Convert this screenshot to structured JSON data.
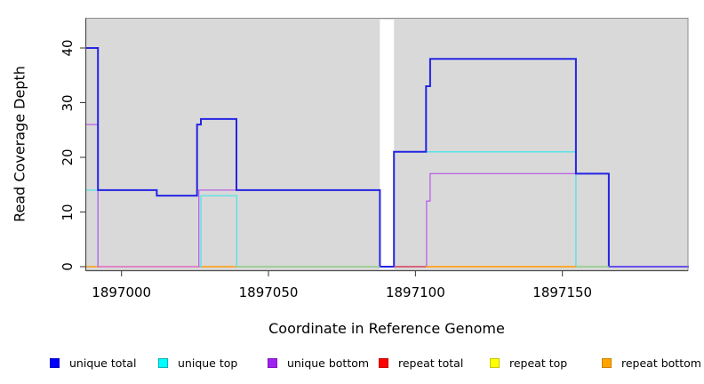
{
  "chart_data": {
    "type": "line",
    "step": true,
    "title": "",
    "xlabel": "Coordinate in Reference Genome",
    "ylabel": "Read Coverage Depth",
    "xlim": [
      1896988,
      1897193
    ],
    "ylim": [
      0,
      45
    ],
    "grid": false,
    "plot_bg": "#d9d9d9",
    "x_ticks": [
      {
        "value": 1897000,
        "label": "1897000"
      },
      {
        "value": 1897050,
        "label": "1897050"
      },
      {
        "value": 1897100,
        "label": "1897100"
      },
      {
        "value": 1897150,
        "label": "1897150"
      }
    ],
    "y_ticks": [
      {
        "value": 0,
        "label": "0"
      },
      {
        "value": 10,
        "label": "10"
      },
      {
        "value": 20,
        "label": "20"
      },
      {
        "value": 30,
        "label": "30"
      },
      {
        "value": 40,
        "label": "40"
      }
    ],
    "gap_region": {
      "from": 1897087.9,
      "to": 1897092.7,
      "color": "#ffffff"
    },
    "series": [
      {
        "name": "repeat total",
        "color": "#FF0000",
        "draw_color": "#e03535",
        "width": 1.2,
        "points": [
          [
            1896988,
            0
          ],
          [
            1897193,
            0
          ]
        ]
      },
      {
        "name": "repeat top",
        "color": "#FFFF00",
        "draw_color": "#e8e84a",
        "width": 1.2,
        "points": [
          [
            1896988,
            0
          ],
          [
            1897193,
            0
          ]
        ]
      },
      {
        "name": "repeat bottom",
        "color": "#FFA500",
        "draw_color": "#ffa520",
        "width": 1.4,
        "points": [
          [
            1896988,
            0
          ],
          [
            1897193,
            0
          ]
        ]
      },
      {
        "name": "unique top",
        "color": "#00FFFF",
        "draw_color": "#4de3e8",
        "width": 1.3,
        "points": [
          [
            1896988,
            14
          ],
          [
            1896992,
            0
          ],
          [
            1897027,
            13
          ],
          [
            1897039.2,
            0
          ],
          [
            1897092.7,
            21
          ],
          [
            1897154.6,
            0
          ],
          [
            1897193,
            0
          ]
        ]
      },
      {
        "name": "unique bottom",
        "color": "#A020F0",
        "draw_color": "#b95fe8",
        "width": 1.3,
        "points": [
          [
            1896988,
            26
          ],
          [
            1896992,
            0
          ],
          [
            1897026.3,
            14
          ],
          [
            1897087.9,
            0
          ],
          [
            1897103.8,
            12
          ],
          [
            1897105,
            17
          ],
          [
            1897165.8,
            0
          ],
          [
            1897193,
            0
          ]
        ]
      },
      {
        "name": "unique total",
        "color": "#0000FF",
        "draw_color": "#2424e4",
        "width": 2,
        "points": [
          [
            1896988,
            40
          ],
          [
            1896992,
            14
          ],
          [
            1897012,
            13
          ],
          [
            1897025.7,
            26
          ],
          [
            1897027,
            27
          ],
          [
            1897039.1,
            14
          ],
          [
            1897087.9,
            0
          ],
          [
            1897092.7,
            21
          ],
          [
            1897103.6,
            33
          ],
          [
            1897105,
            38
          ],
          [
            1897154.6,
            17
          ],
          [
            1897165.8,
            0
          ],
          [
            1897193,
            0
          ]
        ]
      }
    ],
    "baseline_overlays": [
      {
        "from": 1896992,
        "to": 1897026.3,
        "color": "#ea7ad4"
      },
      {
        "from": 1897039.1,
        "to": 1897087.9,
        "color": "#92d8a4"
      },
      {
        "from": 1897092.7,
        "to": 1897103.6,
        "color": "#d4517e"
      },
      {
        "from": 1897103.6,
        "to": 1897154.6,
        "color": "#ffa520"
      },
      {
        "from": 1897154.6,
        "to": 1897165.8,
        "color": "#92d8a4"
      },
      {
        "from": 1897165.8,
        "to": 1897193,
        "color": "#7e5cf0"
      }
    ],
    "legend": {
      "items": [
        {
          "label": "unique total",
          "color": "#0000FF",
          "border": "#0000c0"
        },
        {
          "label": "unique top",
          "color": "#00FFFF",
          "border": "#00b4b4"
        },
        {
          "label": "unique bottom",
          "color": "#A020F0",
          "border": "#7d18bd"
        },
        {
          "label": "repeat total",
          "color": "#FF0000",
          "border": "#c40000"
        },
        {
          "label": "repeat top",
          "color": "#FFFF00",
          "border": "#c6c600"
        },
        {
          "label": "repeat bottom",
          "color": "#FFA500",
          "border": "#c98200"
        }
      ]
    }
  }
}
